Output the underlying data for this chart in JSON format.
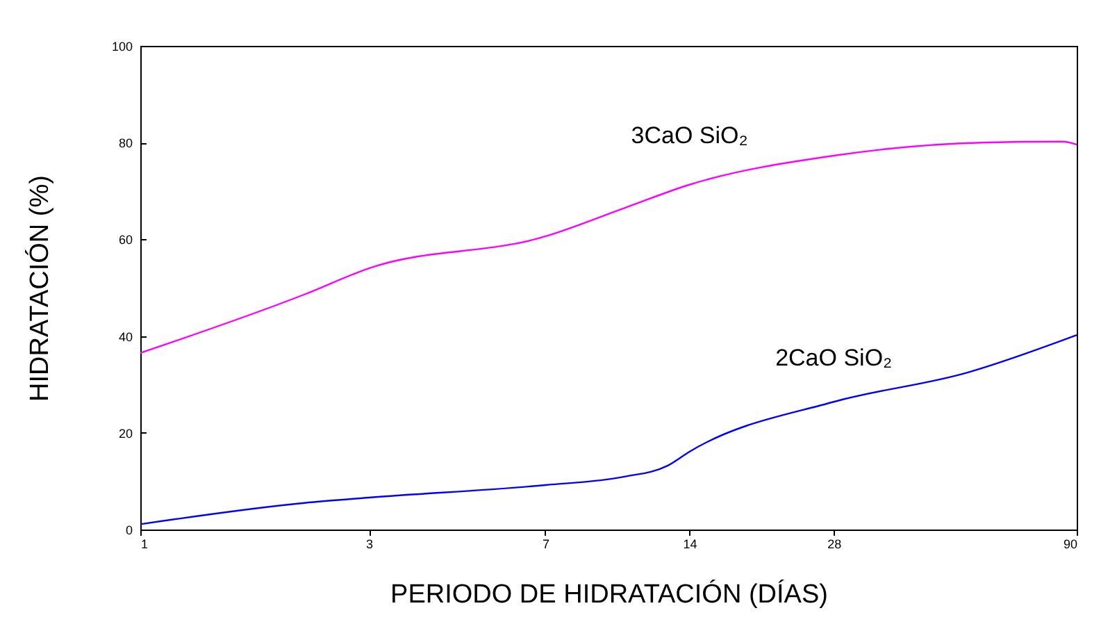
{
  "chart_data": {
    "type": "line",
    "xlabel": "PERIODO DE HIDRATACIÓN (DÍAS)",
    "ylabel": "HIDRATACIÓN (%)",
    "log": "x",
    "xlim": [
      1,
      90
    ],
    "xticks": [
      1,
      3,
      7,
      14,
      28,
      90
    ],
    "ylim": [
      0,
      100
    ],
    "yticks": [
      0,
      20,
      40,
      60,
      80,
      100
    ],
    "grid": false,
    "marker": "none",
    "line_style": "solid",
    "series": [
      {
        "name": "3CaO SiO₂",
        "color": "#ff00ff",
        "x": [
          1,
          2.2,
          3,
          7,
          10.2,
          14,
          28,
          57,
          84,
          90
        ],
        "values": [
          36.5,
          48.6,
          54,
          60.6,
          66.4,
          71.3,
          77.3,
          80,
          80.2,
          79.6
        ]
      },
      {
        "name": "2CaO SiO₂",
        "color": "#0000ff",
        "x": [
          1,
          2.2,
          3,
          7,
          10.2,
          12.6,
          14,
          28,
          53.4,
          90
        ],
        "values": [
          1.1,
          5.5,
          6.6,
          9.2,
          10.9,
          13.2,
          16.1,
          26.4,
          32.5,
          40.2
        ]
      }
    ]
  }
}
